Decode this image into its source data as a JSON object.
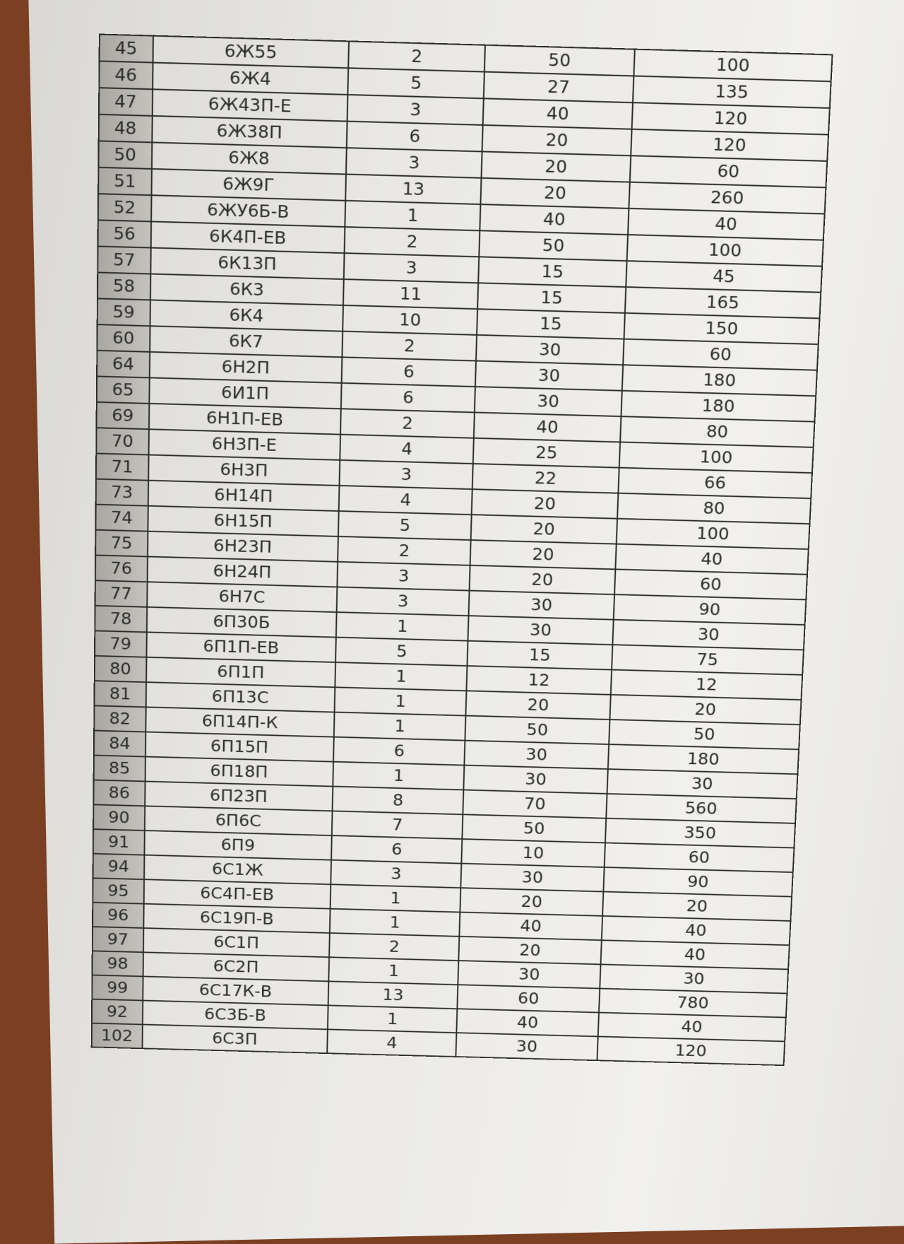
{
  "rows": [
    {
      "num": "45",
      "name": "6Ж55",
      "qty": "2",
      "price": "50",
      "total": "100"
    },
    {
      "num": "46",
      "name": "6Ж4",
      "qty": "5",
      "price": "27",
      "total": "135"
    },
    {
      "num": "47",
      "name": "6Ж43П-Е",
      "qty": "3",
      "price": "40",
      "total": "120"
    },
    {
      "num": "48",
      "name": "6Ж38П",
      "qty": "6",
      "price": "20",
      "total": "120"
    },
    {
      "num": "50",
      "name": "6Ж8",
      "qty": "3",
      "price": "20",
      "total": "60"
    },
    {
      "num": "51",
      "name": "6Ж9Г",
      "qty": "13",
      "price": "20",
      "total": "260"
    },
    {
      "num": "52",
      "name": "6ЖУ6Б-В",
      "qty": "1",
      "price": "40",
      "total": "40"
    },
    {
      "num": "56",
      "name": "6К4П-ЕВ",
      "qty": "2",
      "price": "50",
      "total": "100"
    },
    {
      "num": "57",
      "name": "6К13П",
      "qty": "3",
      "price": "15",
      "total": "45"
    },
    {
      "num": "58",
      "name": "6К3",
      "qty": "11",
      "price": "15",
      "total": "165"
    },
    {
      "num": "59",
      "name": "6К4",
      "qty": "10",
      "price": "15",
      "total": "150"
    },
    {
      "num": "60",
      "name": "6К7",
      "qty": "2",
      "price": "30",
      "total": "60"
    },
    {
      "num": "64",
      "name": "6Н2П",
      "qty": "6",
      "price": "30",
      "total": "180"
    },
    {
      "num": "65",
      "name": "6И1П",
      "qty": "6",
      "price": "30",
      "total": "180"
    },
    {
      "num": "69",
      "name": "6Н1П-ЕВ",
      "qty": "2",
      "price": "40",
      "total": "80"
    },
    {
      "num": "70",
      "name": "6Н3П-Е",
      "qty": "4",
      "price": "25",
      "total": "100"
    },
    {
      "num": "71",
      "name": "6Н3П",
      "qty": "3",
      "price": "22",
      "total": "66"
    },
    {
      "num": "73",
      "name": "6Н14П",
      "qty": "4",
      "price": "20",
      "total": "80"
    },
    {
      "num": "74",
      "name": "6Н15П",
      "qty": "5",
      "price": "20",
      "total": "100"
    },
    {
      "num": "75",
      "name": "6Н23П",
      "qty": "2",
      "price": "20",
      "total": "40"
    },
    {
      "num": "76",
      "name": "6Н24П",
      "qty": "3",
      "price": "20",
      "total": "60"
    },
    {
      "num": "77",
      "name": "6Н7С",
      "qty": "3",
      "price": "30",
      "total": "90"
    },
    {
      "num": "78",
      "name": "6П30Б",
      "qty": "1",
      "price": "30",
      "total": "30"
    },
    {
      "num": "79",
      "name": "6П1П-ЕВ",
      "qty": "5",
      "price": "15",
      "total": "75"
    },
    {
      "num": "80",
      "name": "6П1П",
      "qty": "1",
      "price": "12",
      "total": "12"
    },
    {
      "num": "81",
      "name": "6П13С",
      "qty": "1",
      "price": "20",
      "total": "20"
    },
    {
      "num": "82",
      "name": "6П14П-К",
      "qty": "1",
      "price": "50",
      "total": "50"
    },
    {
      "num": "84",
      "name": "6П15П",
      "qty": "6",
      "price": "30",
      "total": "180"
    },
    {
      "num": "85",
      "name": "6П18П",
      "qty": "1",
      "price": "30",
      "total": "30"
    },
    {
      "num": "86",
      "name": "6П23П",
      "qty": "8",
      "price": "70",
      "total": "560"
    },
    {
      "num": "90",
      "name": "6П6С",
      "qty": "7",
      "price": "50",
      "total": "350"
    },
    {
      "num": "91",
      "name": "6П9",
      "qty": "6",
      "price": "10",
      "total": "60"
    },
    {
      "num": "94",
      "name": "6С1Ж",
      "qty": "3",
      "price": "30",
      "total": "90"
    },
    {
      "num": "95",
      "name": "6С4П-ЕВ",
      "qty": "1",
      "price": "20",
      "total": "20"
    },
    {
      "num": "96",
      "name": "6С19П-В",
      "qty": "1",
      "price": "40",
      "total": "40"
    },
    {
      "num": "97",
      "name": "6С1П",
      "qty": "2",
      "price": "20",
      "total": "40"
    },
    {
      "num": "98",
      "name": "6С2П",
      "qty": "1",
      "price": "30",
      "total": "30"
    },
    {
      "num": "99",
      "name": "6С17К-В",
      "qty": "13",
      "price": "60",
      "total": "780"
    },
    {
      "num": "92",
      "name": "6С3Б-В",
      "qty": "1",
      "price": "40",
      "total": "40"
    },
    {
      "num": "102",
      "name": "6С3П",
      "qty": "4",
      "price": "30",
      "total": "120"
    }
  ]
}
